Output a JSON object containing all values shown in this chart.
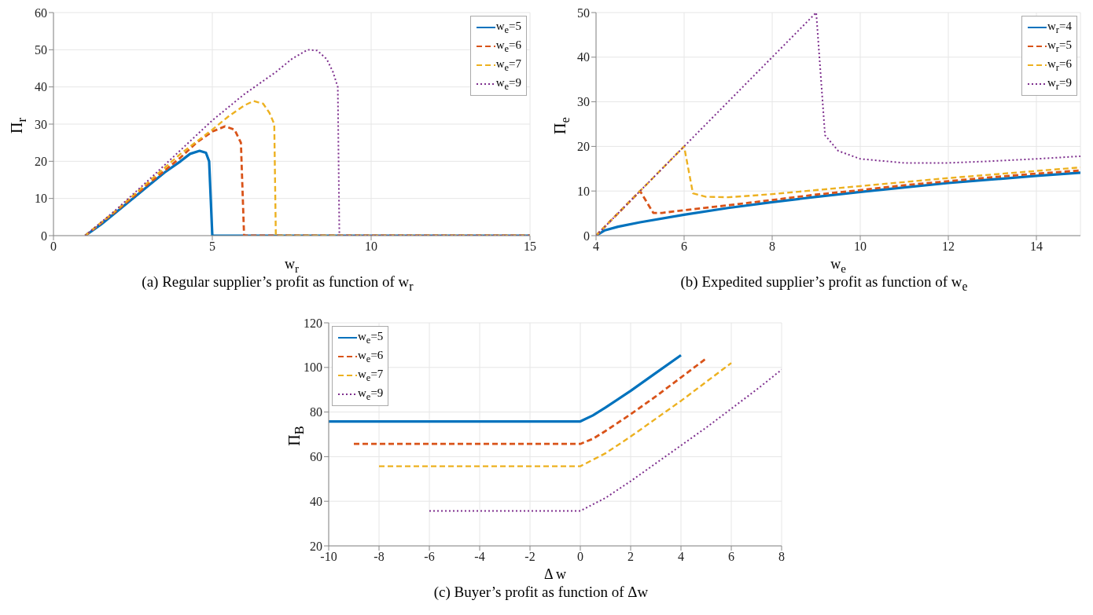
{
  "chart_data": [
    {
      "type": "line",
      "xlabel": "w$_{r}$",
      "ylabel": "Π$_{r}$",
      "annotations": [
        "(a) Regular supplier’s profit as function of w$_{r}$"
      ],
      "xlim": [
        0,
        15
      ],
      "xticks": [
        0,
        5,
        10,
        15
      ],
      "ylim": [
        0,
        60
      ],
      "yticks": [
        0,
        10,
        20,
        30,
        40,
        50,
        60
      ],
      "grid": true,
      "legend": "top right",
      "series": [
        {
          "name": "w$_{e}$=5",
          "color": "#0072bd",
          "line_style": "solid",
          "x": [
            1,
            1.5,
            2,
            2.5,
            3,
            3.5,
            4,
            4.3,
            4.6,
            4.8,
            4.9,
            5,
            15
          ],
          "values": [
            0,
            3,
            6.5,
            10,
            13.5,
            17,
            20,
            22,
            22.8,
            22.3,
            20,
            0,
            0
          ]
        },
        {
          "name": "w$_{e}$=6",
          "color": "#d95319",
          "line_style": "dashed",
          "x": [
            1,
            2,
            3,
            4,
            4.5,
            5,
            5.4,
            5.7,
            5.9,
            6,
            15
          ],
          "values": [
            0,
            6.8,
            14,
            21,
            25,
            28,
            29.4,
            28.5,
            25,
            0,
            0
          ]
        },
        {
          "name": "w$_{e}$=7",
          "color": "#edb120",
          "line_style": "dashed",
          "x": [
            1,
            2,
            3,
            4,
            5,
            5.5,
            6,
            6.3,
            6.6,
            6.8,
            6.95,
            7,
            15
          ],
          "values": [
            0,
            7,
            14.5,
            22,
            28.5,
            32,
            35,
            36.2,
            35.5,
            33,
            30,
            0,
            0
          ]
        },
        {
          "name": "w$_{e}$=9",
          "color": "#7e2f8e",
          "line_style": "dotted",
          "x": [
            1,
            2,
            3,
            4,
            5,
            6,
            7,
            7.5,
            8,
            8.3,
            8.6,
            8.8,
            8.95,
            9,
            15
          ],
          "values": [
            0,
            7.2,
            15,
            23,
            31,
            38,
            44,
            47.5,
            50,
            49.8,
            47.5,
            44,
            40,
            0,
            0
          ]
        }
      ]
    },
    {
      "type": "line",
      "xlabel": "w$_{e}$",
      "ylabel": "Π$_{e}$",
      "annotations": [
        "(b) Expedited supplier’s profit as function of w$_{e}$"
      ],
      "xlim": [
        4,
        15
      ],
      "xticks": [
        4,
        6,
        8,
        10,
        12,
        14
      ],
      "ylim": [
        0,
        50
      ],
      "yticks": [
        0,
        10,
        20,
        30,
        40,
        50
      ],
      "grid": true,
      "legend": "top right",
      "series": [
        {
          "name": "w$_{r}$=4",
          "color": "#0072bd",
          "line_style": "solid",
          "x": [
            4,
            4.2,
            4.5,
            5,
            6,
            7,
            8,
            9,
            10,
            11,
            12,
            13,
            14,
            15
          ],
          "values": [
            0,
            1.2,
            2,
            3,
            4.7,
            6.2,
            7.5,
            8.7,
            9.8,
            10.8,
            11.8,
            12.6,
            13.4,
            14.1
          ]
        },
        {
          "name": "w$_{r}$=5",
          "color": "#d95319",
          "line_style": "dashed",
          "x": [
            4,
            5,
            5.3,
            5.5,
            6,
            7,
            8,
            9,
            10,
            11,
            12,
            13,
            14,
            15
          ],
          "values": [
            0,
            10,
            5.1,
            5.1,
            5.7,
            6.8,
            8,
            9.2,
            10.2,
            11.3,
            12.2,
            13.1,
            13.9,
            14.6
          ]
        },
        {
          "name": "w$_{r}$=6",
          "color": "#edb120",
          "line_style": "dashed",
          "x": [
            4,
            5,
            6,
            6.2,
            6.5,
            7,
            8,
            9,
            10,
            11,
            12,
            13,
            14,
            15
          ],
          "values": [
            0,
            10,
            20,
            9.5,
            8.7,
            8.6,
            9.3,
            10.2,
            11.1,
            12,
            12.9,
            13.7,
            14.5,
            15.3
          ]
        },
        {
          "name": "w$_{r}$=9",
          "color": "#7e2f8e",
          "line_style": "dotted",
          "x": [
            4,
            5,
            6,
            7,
            8,
            9,
            9.2,
            9.5,
            10,
            11,
            12,
            13,
            14,
            15
          ],
          "values": [
            0,
            10,
            20,
            30,
            40,
            50,
            22.5,
            19,
            17.2,
            16.3,
            16.3,
            16.7,
            17.2,
            17.8
          ]
        }
      ]
    },
    {
      "type": "line",
      "xlabel": "Δ w",
      "ylabel": "Π$_{B}$",
      "annotations": [
        "(c) Buyer’s profit as function of Δw"
      ],
      "xlim": [
        -10,
        8
      ],
      "xticks": [
        -10,
        -8,
        -6,
        -4,
        -2,
        0,
        2,
        4,
        6,
        8
      ],
      "ylim": [
        20,
        120
      ],
      "yticks": [
        20,
        40,
        60,
        80,
        100,
        120
      ],
      "grid": true,
      "legend": "top left",
      "series": [
        {
          "name": "w$_{e}$=5",
          "color": "#0072bd",
          "line_style": "solid",
          "x": [
            -10,
            0,
            0.5,
            1,
            2,
            3,
            4
          ],
          "values": [
            75.8,
            75.8,
            78.5,
            82,
            89.5,
            97.5,
            105.5
          ]
        },
        {
          "name": "w$_{e}$=6",
          "color": "#d95319",
          "line_style": "dashed",
          "x": [
            -9,
            0,
            0.5,
            1,
            2,
            3,
            4,
            5
          ],
          "values": [
            65.7,
            65.7,
            68,
            71.5,
            79,
            87,
            95.5,
            104
          ]
        },
        {
          "name": "w$_{e}$=7",
          "color": "#edb120",
          "line_style": "dashed",
          "x": [
            -8,
            0,
            1,
            2,
            3,
            4,
            5,
            6
          ],
          "values": [
            55.7,
            55.7,
            61.5,
            69,
            77,
            85,
            93.5,
            102
          ]
        },
        {
          "name": "w$_{e}$=9",
          "color": "#7e2f8e",
          "line_style": "dotted",
          "x": [
            -6,
            0,
            1,
            2,
            3,
            4,
            5,
            6,
            7,
            8
          ],
          "values": [
            35.7,
            35.7,
            41.5,
            49,
            57,
            65,
            73,
            81.5,
            90,
            99
          ]
        }
      ]
    }
  ]
}
